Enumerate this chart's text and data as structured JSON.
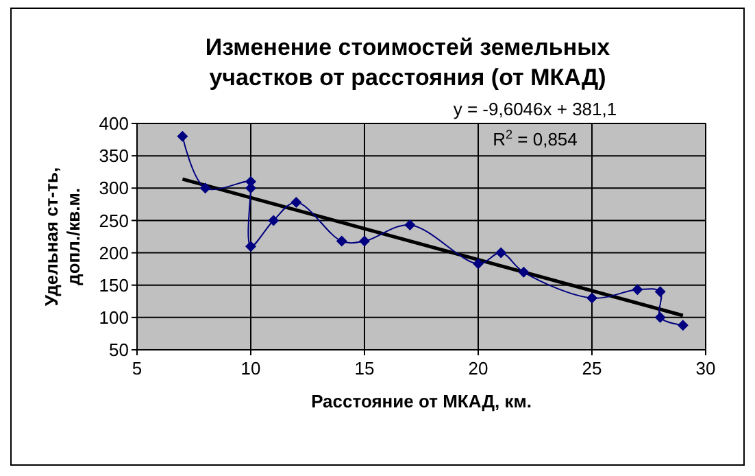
{
  "chart_data": {
    "type": "line",
    "title": "Изменение стоимостей земельных участков от расстояния (от МКАД)",
    "xlabel": "Расстояние от МКАД, км.",
    "ylabel": "Удельная ст-ть, допл./кв.м.",
    "series": [
      {
        "color": "#000080",
        "marker": "diamond",
        "x": [
          7,
          8,
          10,
          10,
          10,
          11,
          12,
          14,
          15,
          17,
          20,
          21,
          22,
          25,
          27,
          28,
          28,
          29
        ],
        "values": [
          380,
          300,
          310,
          300,
          210,
          250,
          278,
          218,
          218,
          243,
          183,
          200,
          170,
          130,
          143,
          140,
          100,
          88
        ]
      },
      {
        "color": "#000000",
        "marker": "none",
        "x": [
          7,
          29
        ],
        "values": [
          314,
          103
        ]
      }
    ],
    "xlim": [
      5,
      30
    ],
    "xticks": [
      5,
      10,
      15,
      20,
      25,
      30
    ],
    "ylim": [
      50,
      400
    ],
    "yticks": [
      50,
      100,
      150,
      200,
      250,
      300,
      350,
      400
    ],
    "grid": true,
    "annotations": [
      "y = -9,6046x + 381,1",
      "R$^{2}$ = 0,854"
    ]
  }
}
